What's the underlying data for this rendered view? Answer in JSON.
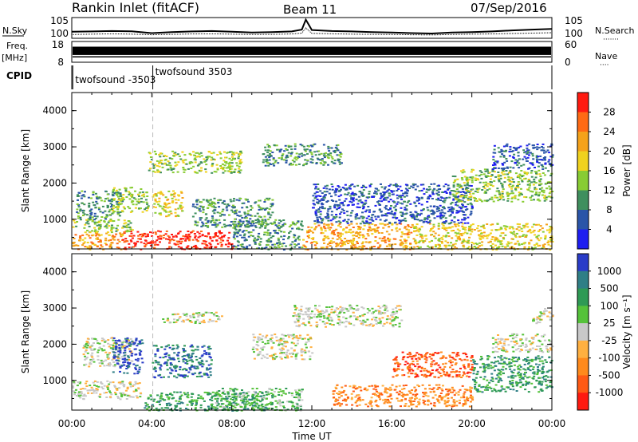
{
  "header": {
    "station": "Rankin Inlet (fitACF)",
    "beam": "Beam 11",
    "date": "07/Sep/2016"
  },
  "panel_labels": {
    "nsky": "N.Sky",
    "nsearch": "N.Search",
    "nsearch_dots": "·······",
    "freq_line1": "Freq.",
    "freq_line2": "[MHz]",
    "nave": "Nave",
    "nave_dots": "····",
    "cpid": "CPID"
  },
  "chart_data": [
    {
      "type": "line",
      "name": "noise",
      "left_ticks": [
        "10^5",
        "10^0"
      ],
      "right_ticks": [
        "10^5",
        "10^0"
      ],
      "x": [
        0,
        1,
        2,
        3,
        4,
        5,
        6,
        7,
        8,
        9,
        10,
        11,
        11.5,
        11.7,
        12,
        13,
        14,
        15,
        16,
        17,
        18,
        19,
        20,
        21,
        22,
        23,
        24
      ],
      "nsky_level": [
        0.32,
        0.33,
        0.35,
        0.34,
        0.25,
        0.3,
        0.33,
        0.35,
        0.32,
        0.28,
        0.3,
        0.33,
        0.42,
        0.9,
        0.4,
        0.35,
        0.33,
        0.3,
        0.28,
        0.25,
        0.23,
        0.28,
        0.3,
        0.33,
        0.38,
        0.42,
        0.45
      ],
      "nsearch_level": [
        0.18,
        0.2,
        0.22,
        0.2,
        0.17,
        0.19,
        0.21,
        0.22,
        0.2,
        0.18,
        0.19,
        0.21,
        0.25,
        0.5,
        0.24,
        0.22,
        0.2,
        0.19,
        0.18,
        0.17,
        0.16,
        0.18,
        0.2,
        0.21,
        0.23,
        0.25,
        0.27
      ]
    },
    {
      "type": "line",
      "name": "frequency",
      "left_ticks": [
        "18",
        "8"
      ],
      "right_ticks": [
        "60",
        "0"
      ],
      "freq_mhz": 10.6,
      "nave_band": [
        0.35,
        0.75
      ]
    },
    {
      "type": "table",
      "name": "cpid",
      "entries": [
        {
          "label": "twofsound -3503",
          "start_hour": 0.05
        },
        {
          "label": "twofsound 3503",
          "start_hour": 4.05
        }
      ]
    },
    {
      "type": "heatmap",
      "parameter": "power",
      "ylabel": "Slant Range [km]",
      "y_ticks": [
        "1000",
        "2000",
        "3000",
        "4000"
      ],
      "ylim": [
        180,
        4500
      ],
      "xlim": [
        0,
        24
      ],
      "colorbar_label": "Power [dB]",
      "colorbar_ticks": [
        "4",
        "8",
        "12",
        "16",
        "20",
        "24",
        "28"
      ],
      "colors": [
        "#1e1ef0",
        "#2a55a8",
        "#3f8f5e",
        "#88cc33",
        "#f0d21e",
        "#f5a21a",
        "#ff6a14",
        "#ff1a10"
      ],
      "regions": [
        {
          "x": [
            0.0,
            2.5
          ],
          "y": [
            180,
            650
          ],
          "level": 5
        },
        {
          "x": [
            2.5,
            8.0
          ],
          "y": [
            180,
            700
          ],
          "level": 7
        },
        {
          "x": [
            0.0,
            3.0
          ],
          "y": [
            650,
            1000
          ],
          "level": 3
        },
        {
          "x": [
            0.2,
            2.5
          ],
          "y": [
            1000,
            1800
          ],
          "level": 2
        },
        {
          "x": [
            2.0,
            3.8
          ],
          "y": [
            1200,
            1900
          ],
          "level": 3
        },
        {
          "x": [
            4.0,
            5.5
          ],
          "y": [
            1100,
            1800
          ],
          "level": 4
        },
        {
          "x": [
            3.8,
            8.5
          ],
          "y": [
            2300,
            2900
          ],
          "level": 3
        },
        {
          "x": [
            6.0,
            10.0
          ],
          "y": [
            800,
            1600
          ],
          "level": 2
        },
        {
          "x": [
            8.0,
            11.5
          ],
          "y": [
            180,
            1000
          ],
          "level": 2
        },
        {
          "x": [
            9.5,
            13.5
          ],
          "y": [
            2500,
            3100
          ],
          "level": 2
        },
        {
          "x": [
            11.5,
            17.0
          ],
          "y": [
            180,
            900
          ],
          "level": 5
        },
        {
          "x": [
            12.0,
            20.0
          ],
          "y": [
            900,
            2000
          ],
          "level": 1
        },
        {
          "x": [
            17.0,
            24.0
          ],
          "y": [
            180,
            900
          ],
          "level": 4
        },
        {
          "x": [
            19.0,
            24.0
          ],
          "y": [
            1500,
            2400
          ],
          "level": 3
        },
        {
          "x": [
            21.0,
            24.0
          ],
          "y": [
            2400,
            3100
          ],
          "level": 1
        }
      ]
    },
    {
      "type": "heatmap",
      "parameter": "velocity",
      "ylabel": "Slant Range [km]",
      "y_ticks": [
        "1000",
        "2000",
        "3000",
        "4000"
      ],
      "ylim": [
        180,
        4500
      ],
      "xlim": [
        0,
        24
      ],
      "colorbar_label": "Velocity [m s⁻¹]",
      "colorbar_ticks": [
        "1000",
        "500",
        "100",
        "25",
        "-25",
        "-100",
        "-500",
        "-1000"
      ],
      "colors": [
        "#2a3cc8",
        "#2f7f86",
        "#2e9a55",
        "#55c23a",
        "#c8c8c8",
        "#ffb040",
        "#ff8a1c",
        "#ff5a14",
        "#ff1a10"
      ],
      "regions": [
        {
          "x": [
            0.0,
            3.5
          ],
          "y": [
            500,
            1000
          ],
          "level": 4
        },
        {
          "x": [
            0.5,
            3.0
          ],
          "y": [
            1400,
            2200
          ],
          "level": 4
        },
        {
          "x": [
            2.0,
            3.5
          ],
          "y": [
            1200,
            2200
          ],
          "level": 0
        },
        {
          "x": [
            3.5,
            10.0
          ],
          "y": [
            180,
            700
          ],
          "level": 2
        },
        {
          "x": [
            4.0,
            7.0
          ],
          "y": [
            1100,
            2000
          ],
          "level": 1
        },
        {
          "x": [
            4.5,
            7.5
          ],
          "y": [
            2600,
            2900
          ],
          "level": 4
        },
        {
          "x": [
            7.0,
            11.5
          ],
          "y": [
            180,
            800
          ],
          "level": 3
        },
        {
          "x": [
            9.0,
            12.0
          ],
          "y": [
            1600,
            2300
          ],
          "level": 4
        },
        {
          "x": [
            11.0,
            16.5
          ],
          "y": [
            2500,
            3100
          ],
          "level": 4
        },
        {
          "x": [
            13.0,
            20.0
          ],
          "y": [
            300,
            900
          ],
          "level": 6
        },
        {
          "x": [
            16.0,
            20.0
          ],
          "y": [
            1100,
            1800
          ],
          "level": 7
        },
        {
          "x": [
            20.0,
            24.0
          ],
          "y": [
            700,
            1700
          ],
          "level": 2
        },
        {
          "x": [
            21.0,
            24.0
          ],
          "y": [
            1800,
            2300
          ],
          "level": 4
        },
        {
          "x": [
            23.0,
            24.0
          ],
          "y": [
            2600,
            3000
          ],
          "level": 4
        }
      ]
    }
  ],
  "time_axis": {
    "label": "Time UT",
    "ticks": [
      "00:00",
      "04:00",
      "08:00",
      "12:00",
      "16:00",
      "20:00",
      "00:00"
    ]
  }
}
